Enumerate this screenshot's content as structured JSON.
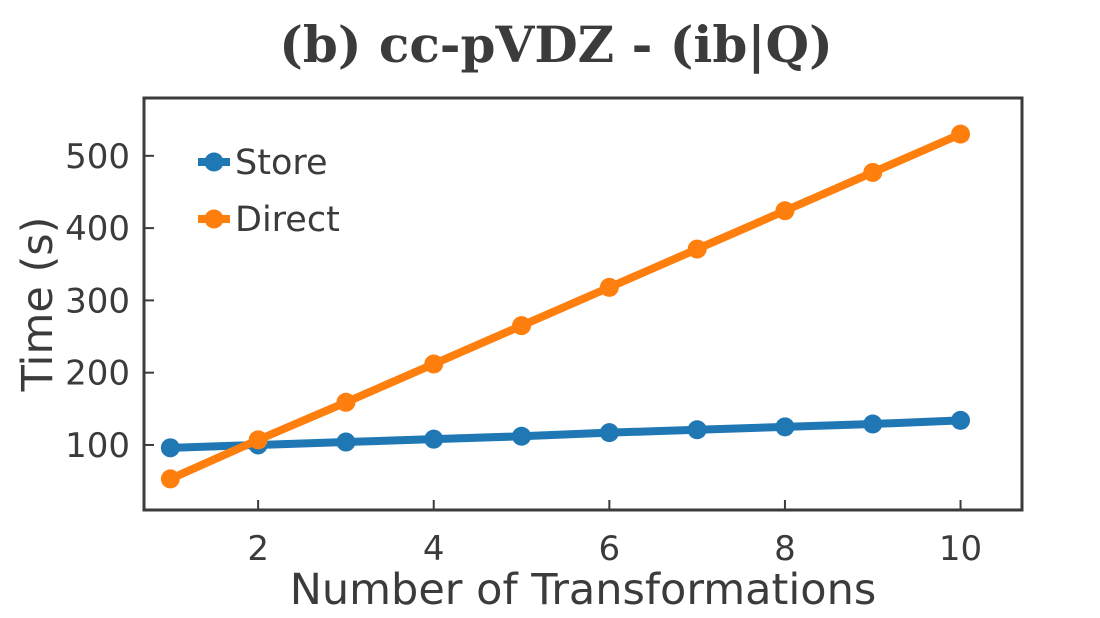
{
  "chart_data": {
    "type": "line",
    "title": "(b) cc-pVDZ - (ib|Q)",
    "xlabel": "Number of Transformations",
    "ylabel": "Time (s)",
    "x": [
      1,
      2,
      3,
      4,
      5,
      6,
      7,
      8,
      9,
      10
    ],
    "xticks": [
      2,
      4,
      6,
      8,
      10
    ],
    "yticks": [
      100,
      200,
      300,
      400,
      500
    ],
    "xlim": [
      0.7,
      10.7
    ],
    "ylim": [
      10,
      580
    ],
    "grid": false,
    "legend_position": "top-left",
    "series": [
      {
        "name": "Store",
        "color": "#1f77b4",
        "values": [
          96,
          100,
          104,
          108,
          112,
          117,
          121,
          125,
          129,
          134
        ]
      },
      {
        "name": "Direct",
        "color": "#ff7f0e",
        "values": [
          53,
          107,
          159,
          212,
          265,
          318,
          371,
          424,
          477,
          530
        ]
      }
    ]
  }
}
